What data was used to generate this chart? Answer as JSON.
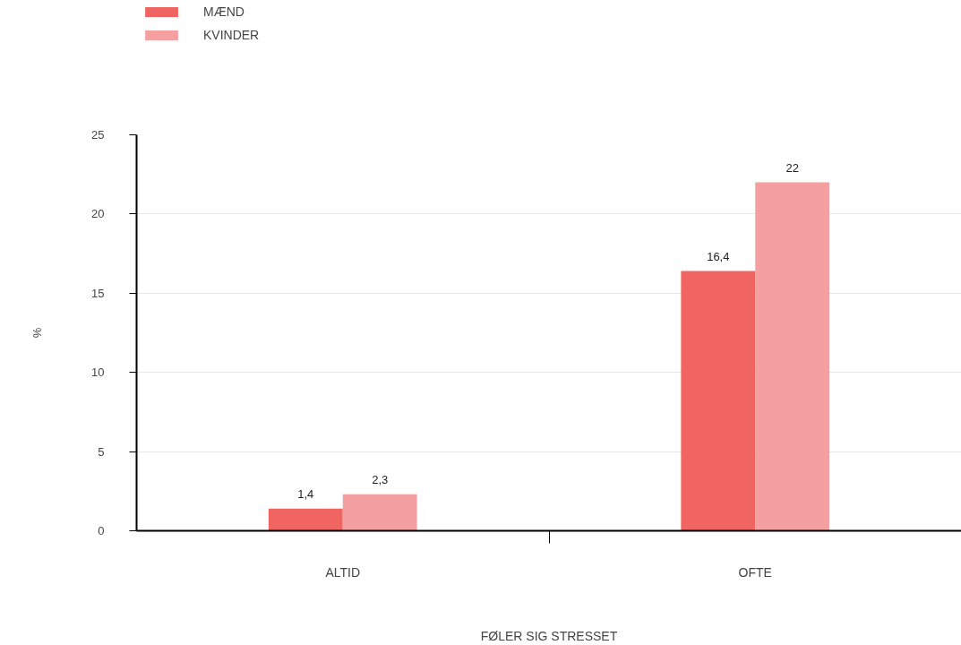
{
  "chart_data": {
    "type": "bar",
    "xlabel": "FØLER SIG STRESSET",
    "ylabel": "%",
    "categories": [
      "ALTID",
      "OFTE"
    ],
    "series": [
      {
        "name": "MÆND",
        "color": "#f06562",
        "values": [
          1.4,
          16.4
        ],
        "value_labels": [
          "1,4",
          "16,4"
        ]
      },
      {
        "name": "KVINDER",
        "color": "#f5a0a0",
        "values": [
          2.3,
          22
        ],
        "value_labels": [
          "2,3",
          "22"
        ]
      }
    ],
    "ylim": [
      0,
      25
    ],
    "yticks": [
      0,
      5,
      10,
      15,
      20,
      25
    ],
    "grid": "y",
    "legend": "top left"
  }
}
